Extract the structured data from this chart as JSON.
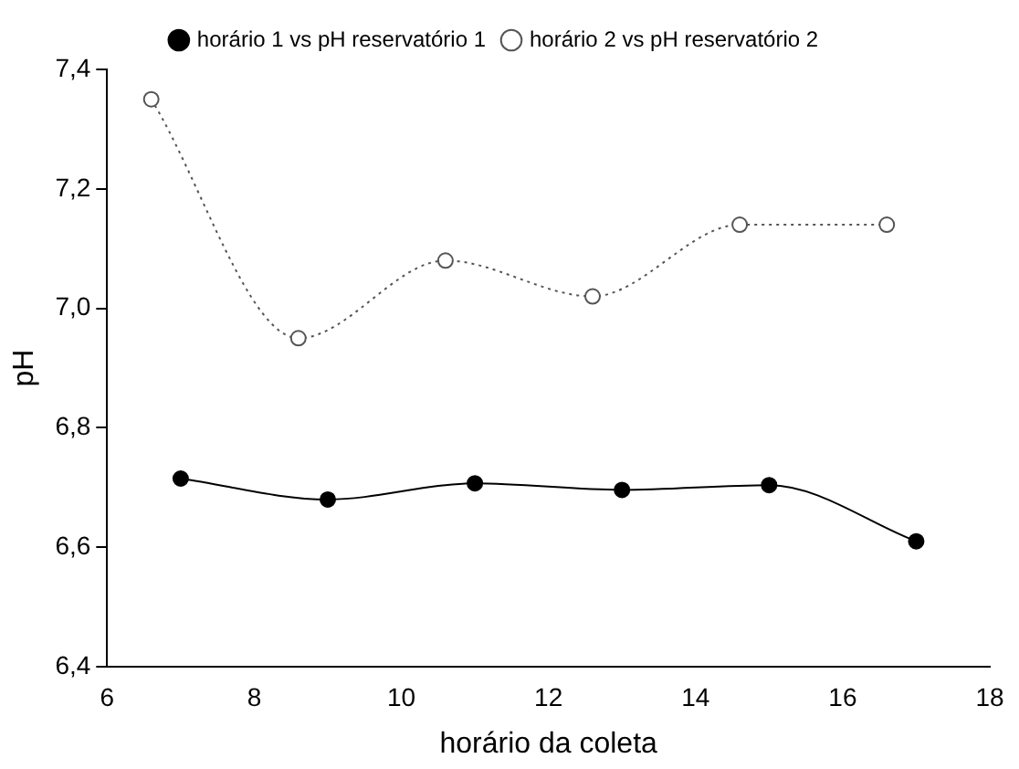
{
  "chart_data": {
    "type": "line",
    "xlabel": "horário da coleta",
    "ylabel": "pH",
    "xlim": [
      6,
      18
    ],
    "xticks": [
      6,
      8,
      10,
      12,
      14,
      16,
      18
    ],
    "ylim": [
      6.4,
      7.4
    ],
    "yticks": [
      {
        "value": 6.4,
        "label": "6,4"
      },
      {
        "value": 6.6,
        "label": "6,6"
      },
      {
        "value": 6.8,
        "label": "6,8"
      },
      {
        "value": 7.0,
        "label": "7,0"
      },
      {
        "value": 7.2,
        "label": "7,2"
      },
      {
        "value": 7.4,
        "label": "7,4"
      }
    ],
    "grid": false,
    "legend": "top",
    "series": [
      {
        "name": "horário 1 vs pH reservatório 1",
        "color": "#000000",
        "x": [
          7,
          9,
          11,
          13,
          15,
          17
        ],
        "values": [
          6.715,
          6.68,
          6.707,
          6.696,
          6.704,
          6.61
        ],
        "marker": "circle",
        "line_style": "solid"
      },
      {
        "name": "horário 2 vs pH reservatório 2",
        "color": "#555555",
        "x": [
          6.6,
          8.6,
          10.6,
          12.6,
          14.6,
          16.6
        ],
        "values": [
          7.35,
          6.95,
          7.08,
          7.02,
          7.14,
          7.14
        ],
        "marker": "circle",
        "line_style": "dotted"
      }
    ]
  }
}
